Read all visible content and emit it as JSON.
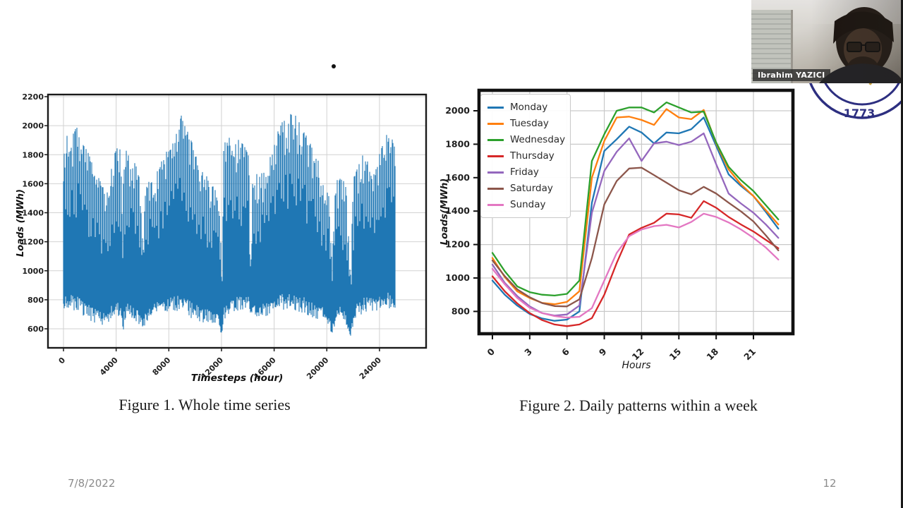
{
  "slide": {
    "date": "7/8/2022",
    "page_number": "12"
  },
  "figure1": {
    "caption": "Figure 1. Whole time series"
  },
  "figure2": {
    "caption": "Figure 2. Daily patterns within a week"
  },
  "webcam": {
    "name_label": "Ibrahim YAZICI"
  },
  "logo": {
    "year": "1773",
    "ring_color": "#2d2f80",
    "accent_color": "#c79a2a"
  },
  "chart_data": [
    {
      "type": "line",
      "title": "",
      "xlabel": "Timesteps (hour)",
      "ylabel": "Loads (MWh)",
      "xticks": [
        0,
        4000,
        8000,
        12000,
        16000,
        20000,
        24000
      ],
      "yticks": [
        600,
        800,
        1000,
        1200,
        1400,
        1600,
        1800,
        2000,
        2200
      ],
      "xlim": [
        -1200,
        27200
      ],
      "ylim": [
        470,
        2215
      ],
      "grid": true,
      "series_color": "#1f77b4",
      "description": "Dense hourly electric load series over ~26300 timesteps oscillating daily between the lower and upper envelopes below; weekend days peak roughly 25-45% lower than weekdays; occasional deep holiday dips near t=4700, 6290, 12550, 14850, 21300, 22750.",
      "x_range": [
        0,
        26300
      ],
      "envelope_upper": [
        [
          0,
          1780
        ],
        [
          300,
          2060
        ],
        [
          700,
          1960
        ],
        [
          1100,
          2030
        ],
        [
          1500,
          1900
        ],
        [
          1900,
          1850
        ],
        [
          2300,
          1760
        ],
        [
          2700,
          1680
        ],
        [
          3100,
          1600
        ],
        [
          3500,
          1560
        ],
        [
          3900,
          1780
        ],
        [
          4300,
          1900
        ],
        [
          4600,
          1880
        ],
        [
          4700,
          1300
        ],
        [
          4800,
          1870
        ],
        [
          5200,
          1830
        ],
        [
          5600,
          1780
        ],
        [
          6000,
          1690
        ],
        [
          6290,
          1200
        ],
        [
          6500,
          1600
        ],
        [
          7000,
          1660
        ],
        [
          7500,
          1720
        ],
        [
          8000,
          1820
        ],
        [
          8500,
          1890
        ],
        [
          9000,
          1980
        ],
        [
          9400,
          2120
        ],
        [
          9700,
          2020
        ],
        [
          10100,
          1930
        ],
        [
          10500,
          1840
        ],
        [
          11000,
          1740
        ],
        [
          11500,
          1660
        ],
        [
          12000,
          1580
        ],
        [
          12400,
          1550
        ],
        [
          12550,
          900
        ],
        [
          12700,
          1900
        ],
        [
          13100,
          1950
        ],
        [
          13500,
          1890
        ],
        [
          13900,
          1930
        ],
        [
          14300,
          1890
        ],
        [
          14700,
          1830
        ],
        [
          14850,
          950
        ],
        [
          15000,
          1680
        ],
        [
          15500,
          1690
        ],
        [
          16000,
          1700
        ],
        [
          16500,
          1850
        ],
        [
          17000,
          2000
        ],
        [
          17400,
          2060
        ],
        [
          17800,
          2130
        ],
        [
          18200,
          2090
        ],
        [
          18600,
          2110
        ],
        [
          19000,
          1990
        ],
        [
          19500,
          1930
        ],
        [
          20000,
          1860
        ],
        [
          20500,
          1700
        ],
        [
          21000,
          1620
        ],
        [
          21300,
          1100
        ],
        [
          21600,
          1640
        ],
        [
          22000,
          1660
        ],
        [
          22400,
          1620
        ],
        [
          22750,
          1000
        ],
        [
          23000,
          1660
        ],
        [
          23400,
          1760
        ],
        [
          23800,
          1830
        ],
        [
          24200,
          1760
        ],
        [
          24600,
          1720
        ],
        [
          25000,
          1810
        ],
        [
          25400,
          1910
        ],
        [
          25800,
          2030
        ],
        [
          26100,
          1940
        ],
        [
          26300,
          1860
        ]
      ],
      "envelope_lower": [
        [
          0,
          715
        ],
        [
          800,
          700
        ],
        [
          1600,
          655
        ],
        [
          2400,
          620
        ],
        [
          3200,
          600
        ],
        [
          3800,
          640
        ],
        [
          4400,
          660
        ],
        [
          4700,
          550
        ],
        [
          5000,
          645
        ],
        [
          5700,
          625
        ],
        [
          6290,
          575
        ],
        [
          6800,
          660
        ],
        [
          7600,
          675
        ],
        [
          8400,
          685
        ],
        [
          9200,
          685
        ],
        [
          10000,
          650
        ],
        [
          10800,
          625
        ],
        [
          11600,
          615
        ],
        [
          12200,
          605
        ],
        [
          12550,
          535
        ],
        [
          12900,
          670
        ],
        [
          13700,
          700
        ],
        [
          14500,
          690
        ],
        [
          14850,
          700
        ],
        [
          15300,
          660
        ],
        [
          16100,
          665
        ],
        [
          16900,
          690
        ],
        [
          17700,
          700
        ],
        [
          18500,
          695
        ],
        [
          19300,
          670
        ],
        [
          20000,
          645
        ],
        [
          20700,
          630
        ],
        [
          21300,
          555
        ],
        [
          21800,
          640
        ],
        [
          22300,
          640
        ],
        [
          22750,
          520
        ],
        [
          23200,
          650
        ],
        [
          23900,
          695
        ],
        [
          24600,
          700
        ],
        [
          25300,
          705
        ],
        [
          26000,
          710
        ],
        [
          26300,
          705
        ]
      ]
    },
    {
      "type": "line",
      "title": "",
      "xlabel": "Hours",
      "ylabel": "Loads(MWh)",
      "x": [
        0,
        1,
        2,
        3,
        4,
        5,
        6,
        7,
        8,
        9,
        10,
        11,
        12,
        13,
        14,
        15,
        16,
        17,
        18,
        19,
        20,
        21,
        22,
        23
      ],
      "xticks": [
        0,
        3,
        6,
        9,
        12,
        15,
        18,
        21
      ],
      "yticks": [
        800,
        1000,
        1200,
        1400,
        1600,
        1800,
        2000
      ],
      "xlim": [
        -1.1,
        24.2
      ],
      "ylim": [
        665,
        2125
      ],
      "grid": true,
      "legend_position": "upper-left",
      "series": [
        {
          "name": "Monday",
          "color": "#1f77b4",
          "values": [
            985,
            900,
            835,
            785,
            758,
            744,
            751,
            800,
            1450,
            1760,
            1830,
            1905,
            1870,
            1805,
            1870,
            1865,
            1890,
            1960,
            1790,
            1620,
            1550,
            1490,
            1395,
            1295
          ]
        },
        {
          "name": "Tuesday",
          "color": "#ff7f0e",
          "values": [
            1120,
            1005,
            920,
            880,
            851,
            843,
            857,
            921,
            1600,
            1820,
            1960,
            1965,
            1945,
            1915,
            2010,
            1960,
            1950,
            2005,
            1805,
            1650,
            1560,
            1490,
            1405,
            1320
          ]
        },
        {
          "name": "Wednesday",
          "color": "#2ca02c",
          "values": [
            1150,
            1040,
            950,
            915,
            900,
            895,
            905,
            985,
            1700,
            1860,
            2000,
            2020,
            2020,
            1990,
            2050,
            2020,
            1990,
            1995,
            1810,
            1665,
            1585,
            1520,
            1435,
            1350
          ]
        },
        {
          "name": "Thursday",
          "color": "#d62728",
          "values": [
            1010,
            920,
            848,
            790,
            748,
            722,
            712,
            722,
            760,
            900,
            1090,
            1260,
            1300,
            1330,
            1385,
            1380,
            1360,
            1460,
            1420,
            1365,
            1320,
            1278,
            1228,
            1178
          ]
        },
        {
          "name": "Friday",
          "color": "#9467bd",
          "values": [
            1080,
            970,
            892,
            830,
            790,
            775,
            782,
            835,
            1390,
            1640,
            1755,
            1835,
            1700,
            1805,
            1815,
            1795,
            1815,
            1865,
            1680,
            1505,
            1445,
            1390,
            1320,
            1240
          ]
        },
        {
          "name": "Saturday",
          "color": "#8c564b",
          "values": [
            1105,
            1010,
            932,
            885,
            850,
            832,
            830,
            872,
            1120,
            1440,
            1580,
            1655,
            1660,
            1615,
            1570,
            1525,
            1500,
            1545,
            1505,
            1450,
            1398,
            1338,
            1255,
            1165
          ]
        },
        {
          "name": "Sunday",
          "color": "#e377c2",
          "values": [
            1055,
            962,
            880,
            822,
            790,
            772,
            763,
            768,
            820,
            985,
            1150,
            1250,
            1290,
            1310,
            1318,
            1302,
            1335,
            1385,
            1365,
            1332,
            1290,
            1240,
            1182,
            1110
          ]
        }
      ]
    }
  ]
}
